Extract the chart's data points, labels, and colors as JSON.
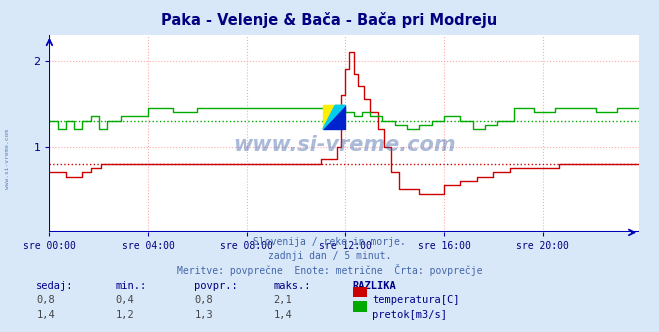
{
  "title": "Paka - Velenje & Bača - Bača pri Modreju",
  "title_color": "#000080",
  "background_color": "#d8e8f8",
  "plot_background": "#ffffff",
  "grid_color": "#ffaaaa",
  "x_label_color": "#000080",
  "y_label_color": "#000080",
  "x_ticks": [
    "sre 00:00",
    "sre 04:00",
    "sre 08:00",
    "sre 12:00",
    "sre 16:00",
    "sre 20:00"
  ],
  "x_tick_positions": [
    0,
    48,
    96,
    144,
    192,
    240
  ],
  "total_points": 288,
  "ylim": [
    0.0,
    2.3
  ],
  "yticks": [
    1,
    2
  ],
  "red_avg_line": 0.8,
  "green_avg_line": 1.3,
  "red_color": "#cc0000",
  "green_color": "#00aa00",
  "axis_color": "#0000bb",
  "subtitle_lines": [
    "Slovenija / reke in morje.",
    "zadnji dan / 5 minut.",
    "Meritve: povprečne  Enote: metrične  Črta: povprečje"
  ],
  "subtitle_color": "#4466aa",
  "table_header": [
    "sedaj:",
    "min.:",
    "povpr.:",
    "maks.:",
    "RAZLIKA"
  ],
  "table_row1": [
    "0,8",
    "0,4",
    "0,8",
    "2,1",
    "temperatura[C]"
  ],
  "table_row2": [
    "1,4",
    "1,2",
    "1,3",
    "1,4",
    "pretok[m3/s]"
  ],
  "table_color": "#000088",
  "watermark_color": "#4466aa",
  "logo_text": "www.si-vreme.com",
  "side_text": "www.si-vreme.com"
}
